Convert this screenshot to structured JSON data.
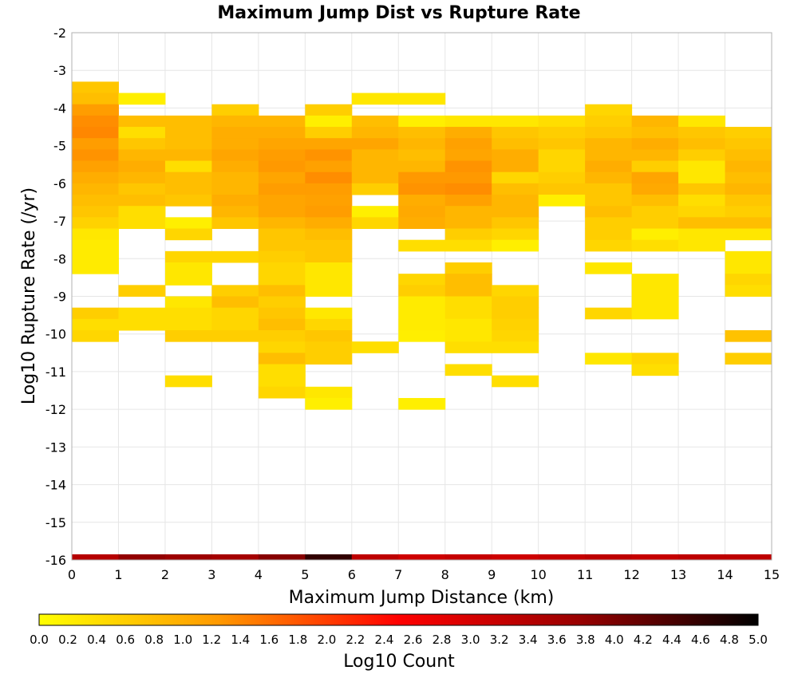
{
  "chart_data": {
    "type": "heatmap",
    "title": "Maximum Jump Dist vs Rupture Rate",
    "xlabel": "Maximum Jump Distance (km)",
    "ylabel": "Log10 Rupture Rate (/yr)",
    "xlim": [
      0,
      15
    ],
    "ylim": [
      -16,
      -2
    ],
    "x_ticks": [
      "0",
      "1",
      "2",
      "3",
      "4",
      "5",
      "6",
      "7",
      "8",
      "9",
      "10",
      "11",
      "12",
      "13",
      "14",
      "15"
    ],
    "y_ticks": [
      "-2",
      "-3",
      "-4",
      "-5",
      "-6",
      "-7",
      "-8",
      "-9",
      "-10",
      "-11",
      "-12",
      "-13",
      "-14",
      "-15",
      "-16"
    ],
    "x_bin_width": 1,
    "y_bin_height": 0.3,
    "colorbar": {
      "label": "Log10 Count",
      "range": [
        0,
        5
      ],
      "ticks": [
        "0.0",
        "0.2",
        "0.4",
        "0.6",
        "0.8",
        "1.0",
        "1.2",
        "1.4",
        "1.6",
        "1.8",
        "2.0",
        "2.2",
        "2.4",
        "2.6",
        "2.8",
        "3.0",
        "3.2",
        "3.4",
        "3.6",
        "3.8",
        "4.0",
        "4.2",
        "4.4",
        "4.6",
        "4.8",
        "5.0"
      ],
      "colors": [
        "#ffff00",
        "#ff9900",
        "#ff0000",
        "#990000",
        "#000000"
      ]
    },
    "grid": true,
    "columns": [
      {
        "x_start": 0,
        "cells": [
          [
            -3.3,
            0.7
          ],
          [
            -3.6,
            0.8
          ],
          [
            -3.9,
            1.2
          ],
          [
            -4.2,
            1.35
          ],
          [
            -4.5,
            1.4
          ],
          [
            -4.8,
            1.2
          ],
          [
            -5.1,
            1.3
          ],
          [
            -5.4,
            1.15
          ],
          [
            -5.7,
            1.0
          ],
          [
            -6.0,
            0.9
          ],
          [
            -6.3,
            0.8
          ],
          [
            -6.6,
            0.7
          ],
          [
            -6.9,
            0.55
          ],
          [
            -7.2,
            0.3
          ],
          [
            -7.5,
            0.25
          ],
          [
            -7.8,
            0.25
          ],
          [
            -8.1,
            0.25
          ],
          [
            -9.3,
            0.6
          ],
          [
            -9.6,
            0.4
          ],
          [
            -9.9,
            0.5
          ]
        ]
      },
      {
        "x_start": 1,
        "cells": [
          [
            -3.6,
            0.2
          ],
          [
            -4.2,
            0.8
          ],
          [
            -4.5,
            0.4
          ],
          [
            -4.8,
            0.7
          ],
          [
            -5.1,
            0.9
          ],
          [
            -5.4,
            1.0
          ],
          [
            -5.7,
            0.9
          ],
          [
            -6.0,
            0.7
          ],
          [
            -6.3,
            0.8
          ],
          [
            -6.6,
            0.4
          ],
          [
            -6.9,
            0.4
          ],
          [
            -8.7,
            0.6
          ],
          [
            -9.3,
            0.4
          ],
          [
            -9.6,
            0.4
          ]
        ]
      },
      {
        "x_start": 2,
        "cells": [
          [
            -4.2,
            0.8
          ],
          [
            -4.5,
            0.8
          ],
          [
            -4.8,
            0.8
          ],
          [
            -5.1,
            0.9
          ],
          [
            -5.4,
            0.4
          ],
          [
            -5.7,
            0.8
          ],
          [
            -6.0,
            0.8
          ],
          [
            -6.3,
            0.7
          ],
          [
            -6.9,
            0.2
          ],
          [
            -7.2,
            0.5
          ],
          [
            -7.8,
            0.5
          ],
          [
            -8.1,
            0.3
          ],
          [
            -8.4,
            0.3
          ],
          [
            -9.0,
            0.3
          ],
          [
            -9.3,
            0.4
          ],
          [
            -9.6,
            0.4
          ],
          [
            -9.9,
            0.6
          ],
          [
            -11.1,
            0.4
          ]
        ]
      },
      {
        "x_start": 3,
        "cells": [
          [
            -3.9,
            0.6
          ],
          [
            -4.2,
            0.9
          ],
          [
            -4.5,
            1.0
          ],
          [
            -4.8,
            1.0
          ],
          [
            -5.1,
            1.1
          ],
          [
            -5.4,
            1.0
          ],
          [
            -5.7,
            0.9
          ],
          [
            -6.0,
            0.9
          ],
          [
            -6.3,
            1.0
          ],
          [
            -6.6,
            0.9
          ],
          [
            -6.9,
            0.7
          ],
          [
            -7.8,
            0.5
          ],
          [
            -8.7,
            0.6
          ],
          [
            -9.0,
            0.8
          ],
          [
            -9.3,
            0.5
          ],
          [
            -9.6,
            0.5
          ],
          [
            -9.9,
            0.6
          ]
        ]
      },
      {
        "x_start": 4,
        "cells": [
          [
            -4.2,
            0.9
          ],
          [
            -4.5,
            1.0
          ],
          [
            -4.8,
            1.1
          ],
          [
            -5.1,
            1.2
          ],
          [
            -5.4,
            1.25
          ],
          [
            -5.7,
            1.1
          ],
          [
            -6.0,
            1.2
          ],
          [
            -6.3,
            1.1
          ],
          [
            -6.6,
            1.1
          ],
          [
            -6.9,
            0.9
          ],
          [
            -7.2,
            0.7
          ],
          [
            -7.5,
            0.7
          ],
          [
            -7.8,
            0.6
          ],
          [
            -8.1,
            0.5
          ],
          [
            -8.4,
            0.5
          ],
          [
            -8.7,
            0.8
          ],
          [
            -9.0,
            0.6
          ],
          [
            -9.3,
            0.7
          ],
          [
            -9.6,
            0.8
          ],
          [
            -9.9,
            0.6
          ],
          [
            -10.2,
            0.5
          ],
          [
            -10.5,
            0.8
          ],
          [
            -10.8,
            0.4
          ],
          [
            -11.1,
            0.4
          ],
          [
            -11.4,
            0.5
          ]
        ]
      },
      {
        "x_start": 5,
        "cells": [
          [
            -3.9,
            0.6
          ],
          [
            -4.2,
            0.2
          ],
          [
            -4.5,
            0.6
          ],
          [
            -4.8,
            1.1
          ],
          [
            -5.1,
            1.3
          ],
          [
            -5.4,
            1.15
          ],
          [
            -5.7,
            1.35
          ],
          [
            -6.0,
            1.2
          ],
          [
            -6.3,
            1.15
          ],
          [
            -6.6,
            1.2
          ],
          [
            -6.9,
            1.0
          ],
          [
            -7.2,
            0.8
          ],
          [
            -7.5,
            0.7
          ],
          [
            -7.8,
            0.7
          ],
          [
            -8.1,
            0.3
          ],
          [
            -8.4,
            0.3
          ],
          [
            -8.7,
            0.3
          ],
          [
            -9.3,
            0.3
          ],
          [
            -9.6,
            0.5
          ],
          [
            -9.9,
            0.7
          ],
          [
            -10.2,
            0.6
          ],
          [
            -10.5,
            0.6
          ],
          [
            -11.4,
            0.3
          ],
          [
            -11.7,
            0.2
          ]
        ]
      },
      {
        "x_start": 6,
        "cells": [
          [
            -3.6,
            0.3
          ],
          [
            -4.2,
            0.8
          ],
          [
            -4.5,
            0.9
          ],
          [
            -4.8,
            1.1
          ],
          [
            -5.1,
            0.9
          ],
          [
            -5.4,
            0.9
          ],
          [
            -5.7,
            0.9
          ],
          [
            -6.0,
            0.6
          ],
          [
            -6.6,
            0.2
          ],
          [
            -6.9,
            0.5
          ],
          [
            -10.2,
            0.4
          ]
        ]
      },
      {
        "x_start": 7,
        "cells": [
          [
            -3.6,
            0.3
          ],
          [
            -4.2,
            0.2
          ],
          [
            -4.5,
            0.8
          ],
          [
            -4.8,
            0.9
          ],
          [
            -5.1,
            0.8
          ],
          [
            -5.4,
            0.9
          ],
          [
            -5.7,
            1.25
          ],
          [
            -6.0,
            1.3
          ],
          [
            -6.3,
            1.0
          ],
          [
            -6.6,
            1.05
          ],
          [
            -6.9,
            1.0
          ],
          [
            -7.5,
            0.4
          ],
          [
            -8.4,
            0.5
          ],
          [
            -8.7,
            0.6
          ],
          [
            -9.0,
            0.25
          ],
          [
            -9.3,
            0.25
          ],
          [
            -9.6,
            0.25
          ],
          [
            -9.9,
            0.2
          ],
          [
            -11.7,
            0.2
          ]
        ]
      },
      {
        "x_start": 8,
        "cells": [
          [
            -4.2,
            0.3
          ],
          [
            -4.5,
            1.0
          ],
          [
            -4.8,
            1.15
          ],
          [
            -5.1,
            1.1
          ],
          [
            -5.4,
            1.3
          ],
          [
            -5.7,
            1.25
          ],
          [
            -6.0,
            1.35
          ],
          [
            -6.3,
            1.15
          ],
          [
            -6.6,
            0.9
          ],
          [
            -6.9,
            0.9
          ],
          [
            -7.2,
            0.6
          ],
          [
            -7.5,
            0.4
          ],
          [
            -8.1,
            0.6
          ],
          [
            -8.4,
            0.8
          ],
          [
            -8.7,
            0.8
          ],
          [
            -9.0,
            0.4
          ],
          [
            -9.3,
            0.4
          ],
          [
            -9.6,
            0.3
          ],
          [
            -9.9,
            0.3
          ],
          [
            -10.2,
            0.4
          ],
          [
            -10.8,
            0.4
          ]
        ]
      },
      {
        "x_start": 9,
        "cells": [
          [
            -4.2,
            0.3
          ],
          [
            -4.5,
            0.7
          ],
          [
            -4.8,
            0.8
          ],
          [
            -5.1,
            1.0
          ],
          [
            -5.4,
            1.0
          ],
          [
            -5.7,
            0.5
          ],
          [
            -6.0,
            0.8
          ],
          [
            -6.3,
            0.9
          ],
          [
            -6.6,
            0.9
          ],
          [
            -6.9,
            0.7
          ],
          [
            -7.2,
            0.5
          ],
          [
            -7.5,
            0.2
          ],
          [
            -8.7,
            0.5
          ],
          [
            -9.0,
            0.6
          ],
          [
            -9.3,
            0.6
          ],
          [
            -9.6,
            0.55
          ],
          [
            -9.9,
            0.5
          ],
          [
            -10.2,
            0.4
          ],
          [
            -11.1,
            0.4
          ]
        ]
      },
      {
        "x_start": 10,
        "cells": [
          [
            -4.2,
            0.4
          ],
          [
            -4.5,
            0.6
          ],
          [
            -4.8,
            0.7
          ],
          [
            -5.1,
            0.5
          ],
          [
            -5.4,
            0.5
          ],
          [
            -5.7,
            0.6
          ],
          [
            -6.0,
            0.7
          ],
          [
            -6.3,
            0.2
          ]
        ]
      },
      {
        "x_start": 11,
        "cells": [
          [
            -3.9,
            0.5
          ],
          [
            -4.2,
            0.6
          ],
          [
            -4.5,
            0.7
          ],
          [
            -4.8,
            0.9
          ],
          [
            -5.1,
            0.9
          ],
          [
            -5.4,
            1.0
          ],
          [
            -5.7,
            0.9
          ],
          [
            -6.0,
            0.7
          ],
          [
            -6.3,
            0.7
          ],
          [
            -6.6,
            0.8
          ],
          [
            -6.9,
            0.6
          ],
          [
            -7.2,
            0.6
          ],
          [
            -7.5,
            0.5
          ],
          [
            -8.1,
            0.3
          ],
          [
            -9.3,
            0.5
          ],
          [
            -10.5,
            0.3
          ]
        ]
      },
      {
        "x_start": 12,
        "cells": [
          [
            -4.2,
            0.9
          ],
          [
            -4.5,
            0.8
          ],
          [
            -4.8,
            1.0
          ],
          [
            -5.1,
            0.9
          ],
          [
            -5.4,
            0.6
          ],
          [
            -5.7,
            1.1
          ],
          [
            -6.0,
            1.05
          ],
          [
            -6.3,
            0.8
          ],
          [
            -6.6,
            0.6
          ],
          [
            -6.9,
            0.6
          ],
          [
            -7.2,
            0.2
          ],
          [
            -7.5,
            0.4
          ],
          [
            -8.4,
            0.3
          ],
          [
            -8.7,
            0.3
          ],
          [
            -9.0,
            0.3
          ],
          [
            -9.3,
            0.3
          ],
          [
            -10.5,
            0.5
          ],
          [
            -10.8,
            0.4
          ]
        ]
      },
      {
        "x_start": 13,
        "cells": [
          [
            -4.2,
            0.3
          ],
          [
            -4.5,
            0.7
          ],
          [
            -4.8,
            0.8
          ],
          [
            -5.1,
            0.6
          ],
          [
            -5.4,
            0.3
          ],
          [
            -5.7,
            0.3
          ],
          [
            -6.0,
            0.7
          ],
          [
            -6.3,
            0.4
          ],
          [
            -6.6,
            0.5
          ],
          [
            -6.9,
            0.8
          ],
          [
            -7.2,
            0.3
          ],
          [
            -7.5,
            0.3
          ]
        ]
      },
      {
        "x_start": 14,
        "cells": [
          [
            -4.5,
            0.6
          ],
          [
            -4.8,
            0.7
          ],
          [
            -5.1,
            0.8
          ],
          [
            -5.4,
            0.9
          ],
          [
            -5.7,
            0.8
          ],
          [
            -6.0,
            0.9
          ],
          [
            -6.3,
            0.7
          ],
          [
            -6.6,
            0.6
          ],
          [
            -6.9,
            0.8
          ],
          [
            -7.2,
            0.3
          ],
          [
            -7.8,
            0.3
          ],
          [
            -8.1,
            0.3
          ],
          [
            -8.4,
            0.5
          ],
          [
            -8.7,
            0.4
          ],
          [
            -9.9,
            0.75
          ],
          [
            -10.5,
            0.6
          ]
        ]
      }
    ],
    "bottom_row": {
      "y_start": -16,
      "height": 0.15,
      "values": [
        3.4,
        3.8,
        3.7,
        3.6,
        3.9,
        4.6,
        3.3,
        3.1,
        3.2,
        3.1,
        3.2,
        3.3,
        3.2,
        3.3,
        3.3
      ]
    }
  }
}
